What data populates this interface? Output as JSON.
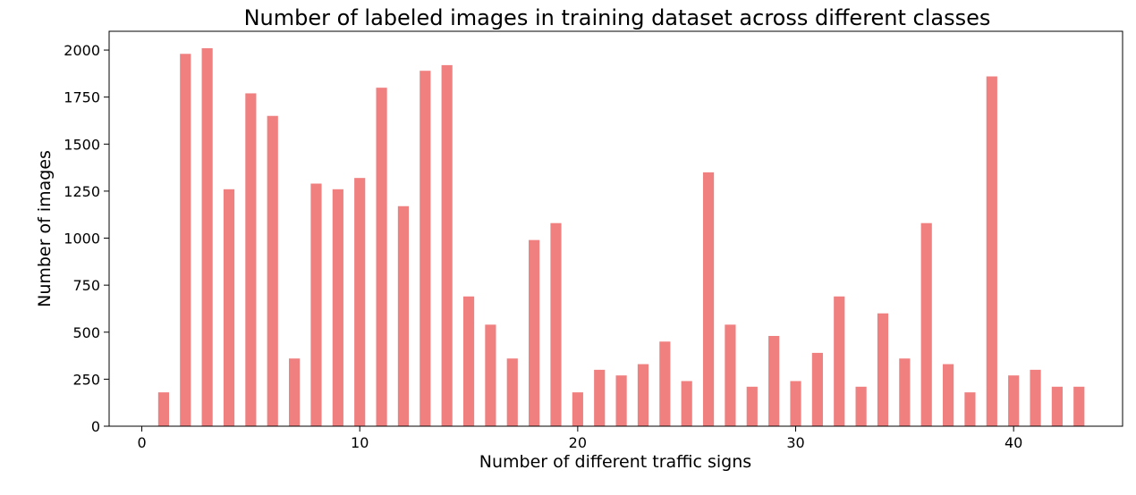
{
  "chart_data": {
    "type": "bar",
    "title": "Number of labeled images in training dataset across different classes",
    "xlabel": "Number of different traffic signs",
    "ylabel": "Number of images",
    "x": [
      0,
      1,
      2,
      3,
      4,
      5,
      6,
      7,
      8,
      9,
      10,
      11,
      12,
      13,
      14,
      15,
      16,
      17,
      18,
      19,
      20,
      21,
      22,
      23,
      24,
      25,
      26,
      27,
      28,
      29,
      30,
      31,
      32,
      33,
      34,
      35,
      36,
      37,
      38,
      39,
      40,
      41,
      42
    ],
    "values": [
      180,
      1980,
      2010,
      1260,
      1770,
      1650,
      360,
      1290,
      1260,
      1320,
      1800,
      1170,
      1890,
      1920,
      690,
      540,
      360,
      990,
      1080,
      180,
      300,
      270,
      330,
      450,
      240,
      1350,
      540,
      210,
      480,
      240,
      390,
      690,
      210,
      600,
      360,
      1080,
      330,
      180,
      1860,
      270,
      300,
      210,
      210
    ],
    "xlim": [
      -1.5,
      45
    ],
    "ylim": [
      0,
      2100
    ],
    "xticks": [
      0,
      10,
      20,
      30,
      40
    ],
    "xtick_labels": [
      "0",
      "10",
      "20",
      "30",
      "40"
    ],
    "yticks": [
      0,
      250,
      500,
      750,
      1000,
      1250,
      1500,
      1750,
      2000
    ],
    "ytick_labels": [
      "0",
      "250",
      "500",
      "750",
      "1000",
      "1250",
      "1500",
      "1750",
      "2000"
    ],
    "bar_color": "#f08080",
    "grid": false,
    "legend": false
  }
}
